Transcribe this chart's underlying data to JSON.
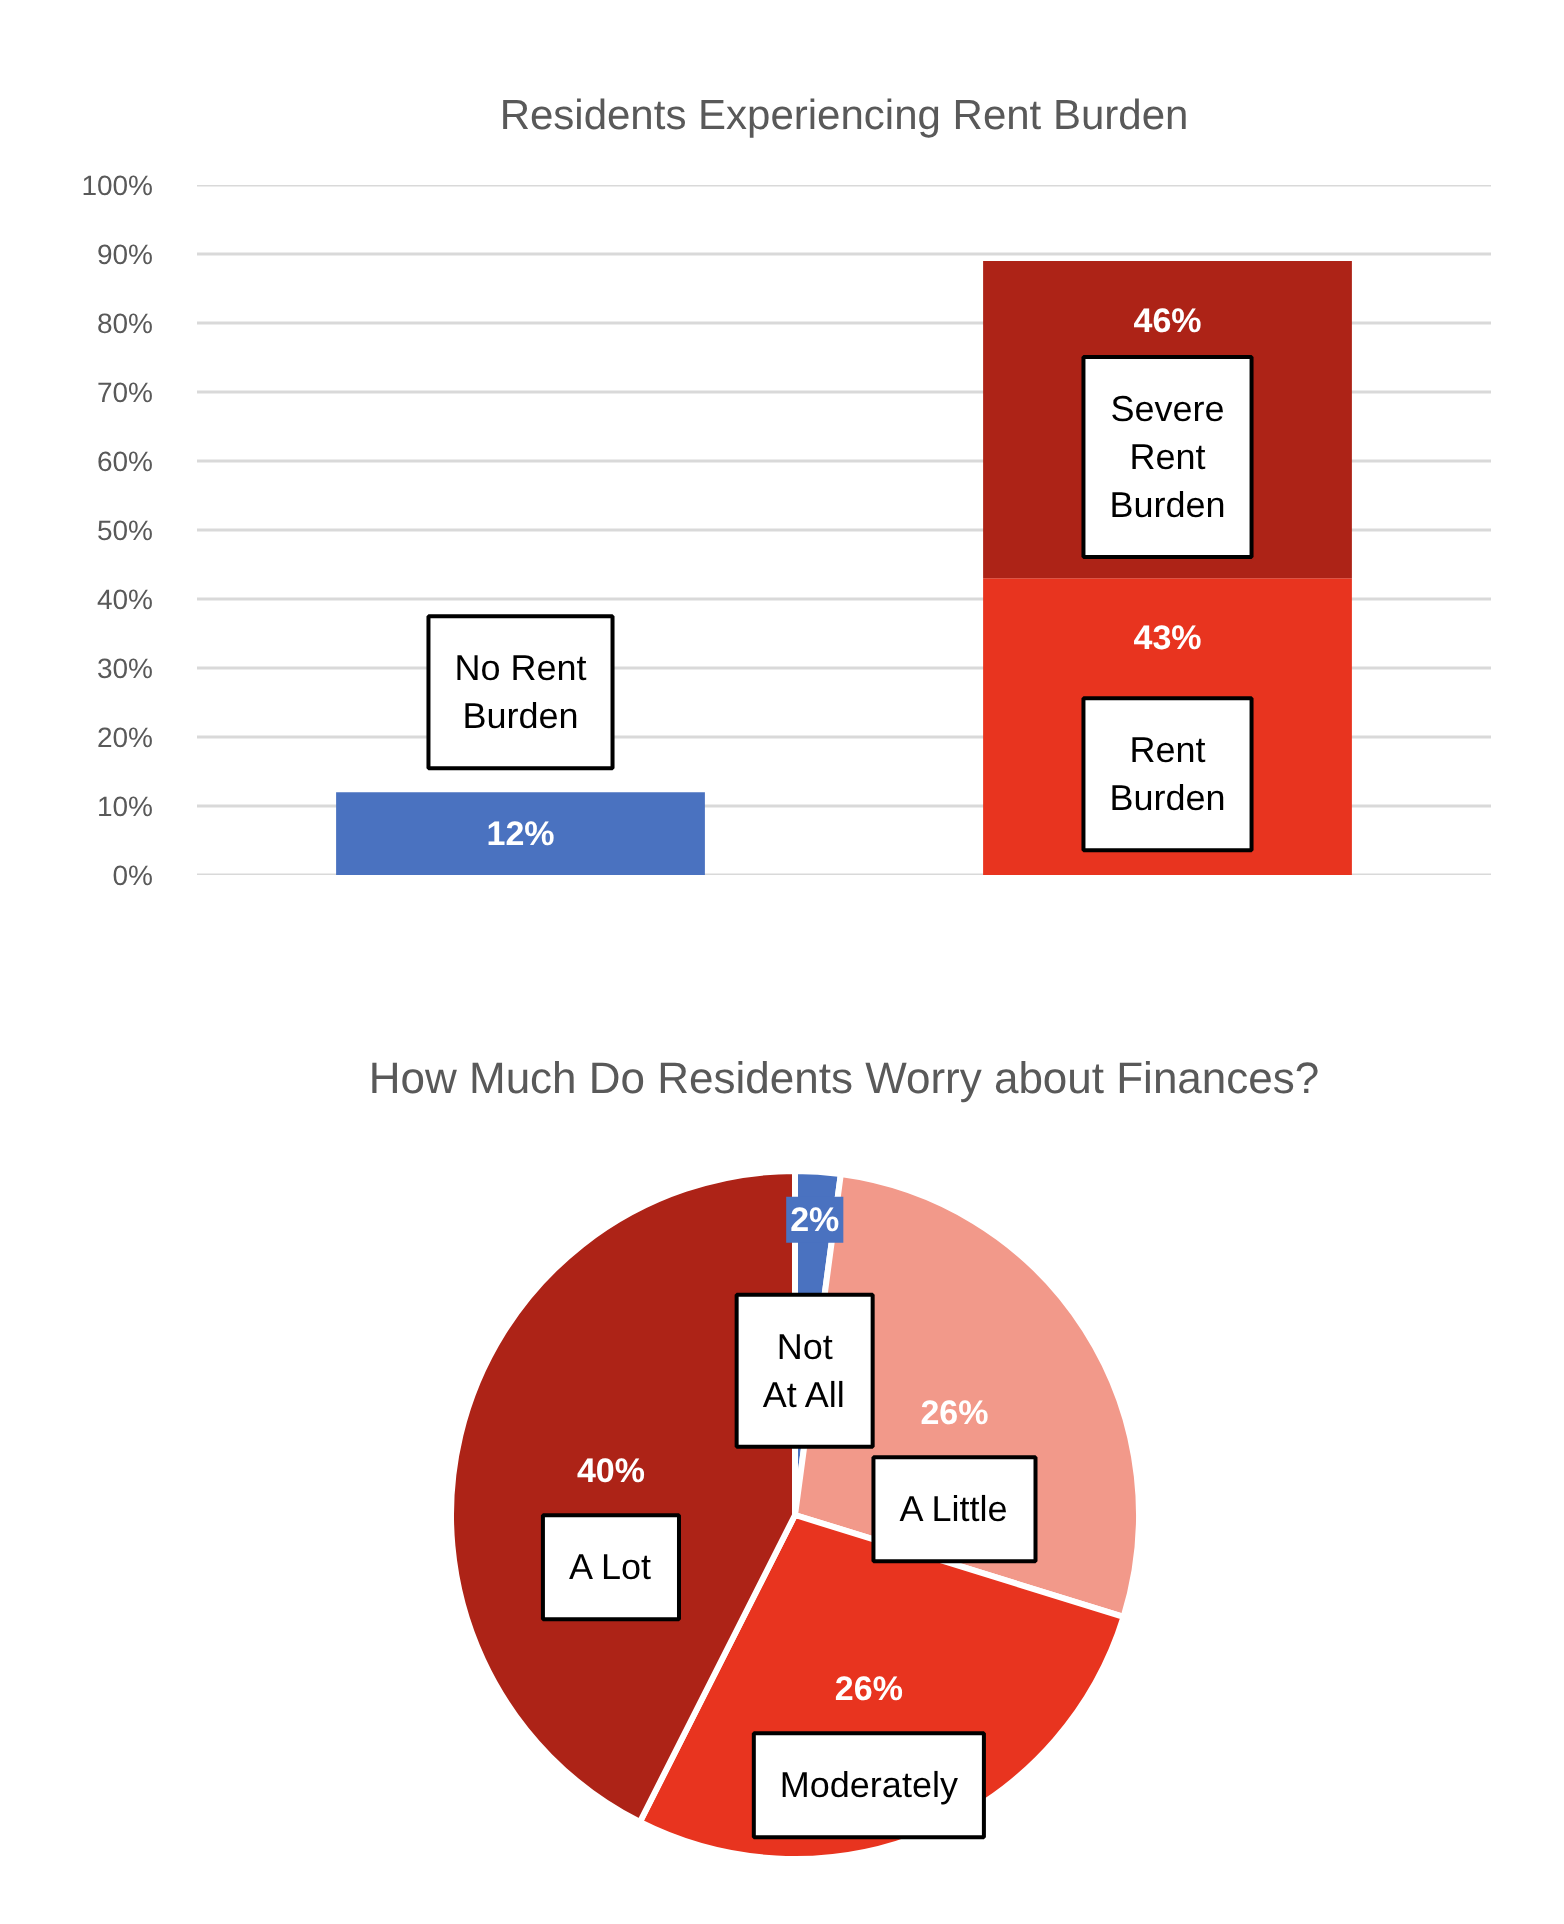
{
  "chart_data": [
    {
      "type": "bar",
      "title": "Residents Experiencing Rent Burden",
      "categories": [
        null,
        null
      ],
      "stacked": true,
      "series": [
        {
          "name": "No Rent Burden",
          "color": "#4a72c0",
          "values": [
            12,
            null
          ],
          "value_labels": [
            "12%",
            null
          ]
        },
        {
          "name": "Rent Burden",
          "color": "#e8341f",
          "values": [
            null,
            43
          ],
          "value_labels": [
            null,
            "43%"
          ]
        },
        {
          "name": "Severe Rent Burden",
          "color": "#ad2317",
          "values": [
            null,
            46
          ],
          "value_labels": [
            null,
            "46%"
          ]
        }
      ],
      "ylim": [
        0,
        100
      ],
      "yticks": [
        {
          "value": 0,
          "label": "0%"
        },
        {
          "value": 10,
          "label": "10%"
        },
        {
          "value": 20,
          "label": "20%"
        },
        {
          "value": 30,
          "label": "30%"
        },
        {
          "value": 40,
          "label": "40%"
        },
        {
          "value": 50,
          "label": "50%"
        },
        {
          "value": 60,
          "label": "60%"
        },
        {
          "value": 70,
          "label": "70%"
        },
        {
          "value": 80,
          "label": "80%"
        },
        {
          "value": 90,
          "label": "90%"
        },
        {
          "value": 100,
          "label": "100%"
        }
      ],
      "grid": "y",
      "tick_labels": "y"
    },
    {
      "type": "pie",
      "title": "How Much Do Residents Worry about Finances?",
      "categories": [
        "Not At All",
        "A Little",
        "Moderately",
        "A Lot"
      ],
      "values": [
        2,
        26,
        26,
        40
      ],
      "colors": [
        "#4a72c0",
        "#f2998a",
        "#e8341f",
        "#ad2317"
      ],
      "value_labels": [
        "2%",
        "26%",
        "26%",
        "40%"
      ]
    }
  ]
}
